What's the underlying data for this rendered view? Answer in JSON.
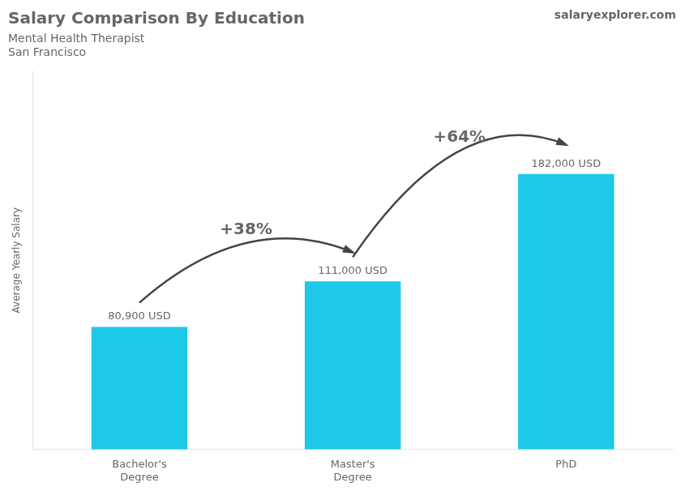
{
  "chart_data": {
    "type": "bar",
    "title": "Salary Comparison By Education",
    "subtitle": "Mental Health Therapist",
    "location": "San Francisco",
    "watermark": "salaryexplorer.com",
    "ylabel": "Average Yearly Salary",
    "categories": [
      "Bachelor's\nDegree",
      "Master's\nDegree",
      "PhD"
    ],
    "values": [
      80900,
      111000,
      182000
    ],
    "value_labels": [
      "80,900 USD",
      "111,000 USD",
      "182,000 USD"
    ],
    "data_labels": true,
    "annotations": [
      "+38%",
      "+64%"
    ],
    "color": "#1ec8e8",
    "ylim": [
      0,
      250000
    ],
    "grid": false,
    "tick_labels": "x"
  }
}
